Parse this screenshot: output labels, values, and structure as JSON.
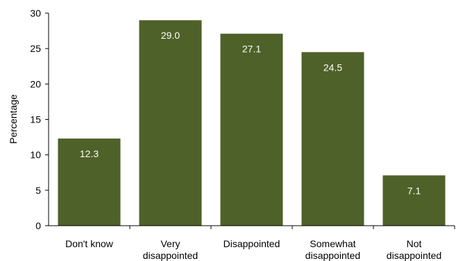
{
  "chart_data": {
    "type": "bar",
    "title": "",
    "xlabel": "",
    "ylabel": "Percentage",
    "ylim": [
      0,
      30
    ],
    "yticks": [
      0,
      5,
      10,
      15,
      20,
      25,
      30
    ],
    "grid": false,
    "bar_color": "#4e6128",
    "categories": [
      [
        "Don't know"
      ],
      [
        "Very",
        "disappointed"
      ],
      [
        "Disappointed"
      ],
      [
        "Somewhat",
        "disappointed"
      ],
      [
        "Not",
        "disappointed"
      ]
    ],
    "values": [
      12.3,
      29.0,
      27.1,
      24.5,
      7.1
    ],
    "value_labels": [
      "12.3",
      "29.0",
      "27.1",
      "24.5",
      "7.1"
    ]
  }
}
